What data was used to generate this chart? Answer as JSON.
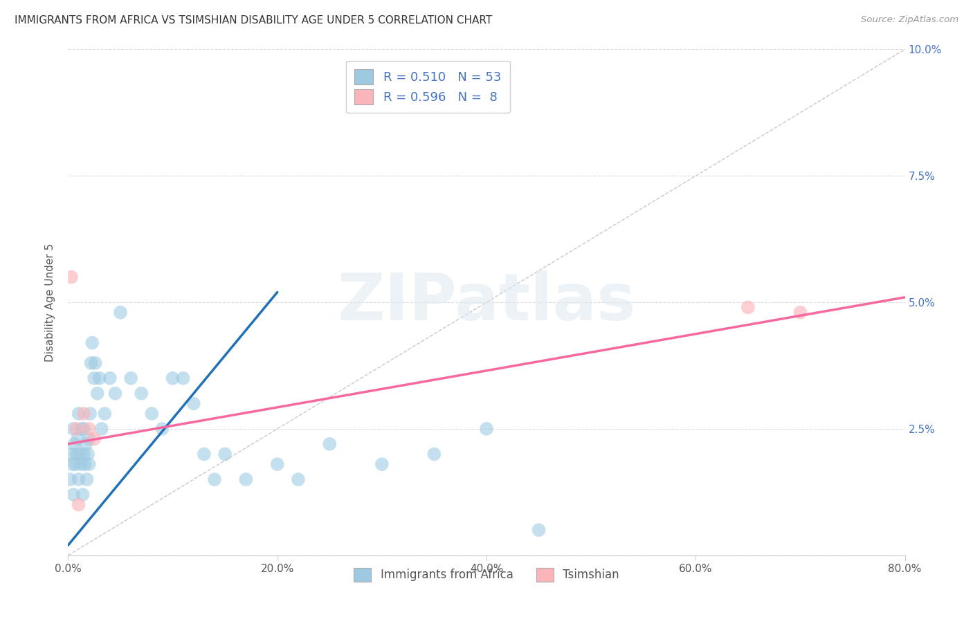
{
  "title": "IMMIGRANTS FROM AFRICA VS TSIMSHIAN DISABILITY AGE UNDER 5 CORRELATION CHART",
  "source": "Source: ZipAtlas.com",
  "ylabel": "Disability Age Under 5",
  "x_tick_labels": [
    "0.0%",
    "20.0%",
    "40.0%",
    "60.0%",
    "80.0%"
  ],
  "x_tick_vals": [
    0,
    20,
    40,
    60,
    80
  ],
  "y_tick_labels": [
    "",
    "2.5%",
    "5.0%",
    "7.5%",
    "10.0%"
  ],
  "y_tick_vals": [
    0,
    2.5,
    5.0,
    7.5,
    10.0
  ],
  "xlim": [
    0,
    80
  ],
  "ylim": [
    0,
    10
  ],
  "watermark": "ZIPatlas",
  "blue_color": "#9ecae1",
  "pink_color": "#fbb4b9",
  "blue_line_color": "#2171b5",
  "pink_line_color": "#f768a1",
  "right_axis_color": "#4472c4",
  "title_color": "#333333",
  "grid_color": "#cccccc",
  "background_color": "#ffffff",
  "blue_scatter_x": [
    0.2,
    0.3,
    0.4,
    0.5,
    0.5,
    0.6,
    0.7,
    0.8,
    0.9,
    1.0,
    1.0,
    1.1,
    1.2,
    1.3,
    1.4,
    1.5,
    1.5,
    1.6,
    1.7,
    1.8,
    1.9,
    2.0,
    2.0,
    2.1,
    2.2,
    2.3,
    2.5,
    2.6,
    2.8,
    3.0,
    3.2,
    3.5,
    4.0,
    4.5,
    5.0,
    6.0,
    7.0,
    8.0,
    9.0,
    10.0,
    11.0,
    12.0,
    13.0,
    14.0,
    15.0,
    17.0,
    20.0,
    22.0,
    25.0,
    30.0,
    35.0,
    40.0,
    45.0
  ],
  "blue_scatter_y": [
    1.5,
    2.0,
    1.8,
    1.2,
    2.5,
    2.2,
    1.8,
    2.0,
    2.3,
    1.5,
    2.8,
    2.0,
    1.8,
    2.5,
    1.2,
    2.0,
    2.5,
    1.8,
    2.2,
    1.5,
    2.0,
    1.8,
    2.3,
    2.8,
    3.8,
    4.2,
    3.5,
    3.8,
    3.2,
    3.5,
    2.5,
    2.8,
    3.5,
    3.2,
    4.8,
    3.5,
    3.2,
    2.8,
    2.5,
    3.5,
    3.5,
    3.0,
    2.0,
    1.5,
    2.0,
    1.5,
    1.8,
    1.5,
    2.2,
    1.8,
    2.0,
    2.5,
    0.5
  ],
  "pink_scatter_x": [
    0.3,
    0.8,
    1.0,
    1.5,
    2.0,
    2.5,
    65.0,
    70.0
  ],
  "pink_scatter_y": [
    5.5,
    2.5,
    1.0,
    2.8,
    2.5,
    2.3,
    4.9,
    4.8
  ],
  "blue_line_x": [
    0,
    20
  ],
  "blue_line_y": [
    0.2,
    5.2
  ],
  "pink_line_x": [
    0,
    80
  ],
  "pink_line_y": [
    2.2,
    5.1
  ],
  "diag_line_x": [
    0,
    80
  ],
  "diag_line_y": [
    0,
    10
  ],
  "legend_label1": "Immigrants from Africa",
  "legend_label2": "Tsimshian",
  "r1": "0.510",
  "n1": "53",
  "r2": "0.596",
  "n2": "8"
}
